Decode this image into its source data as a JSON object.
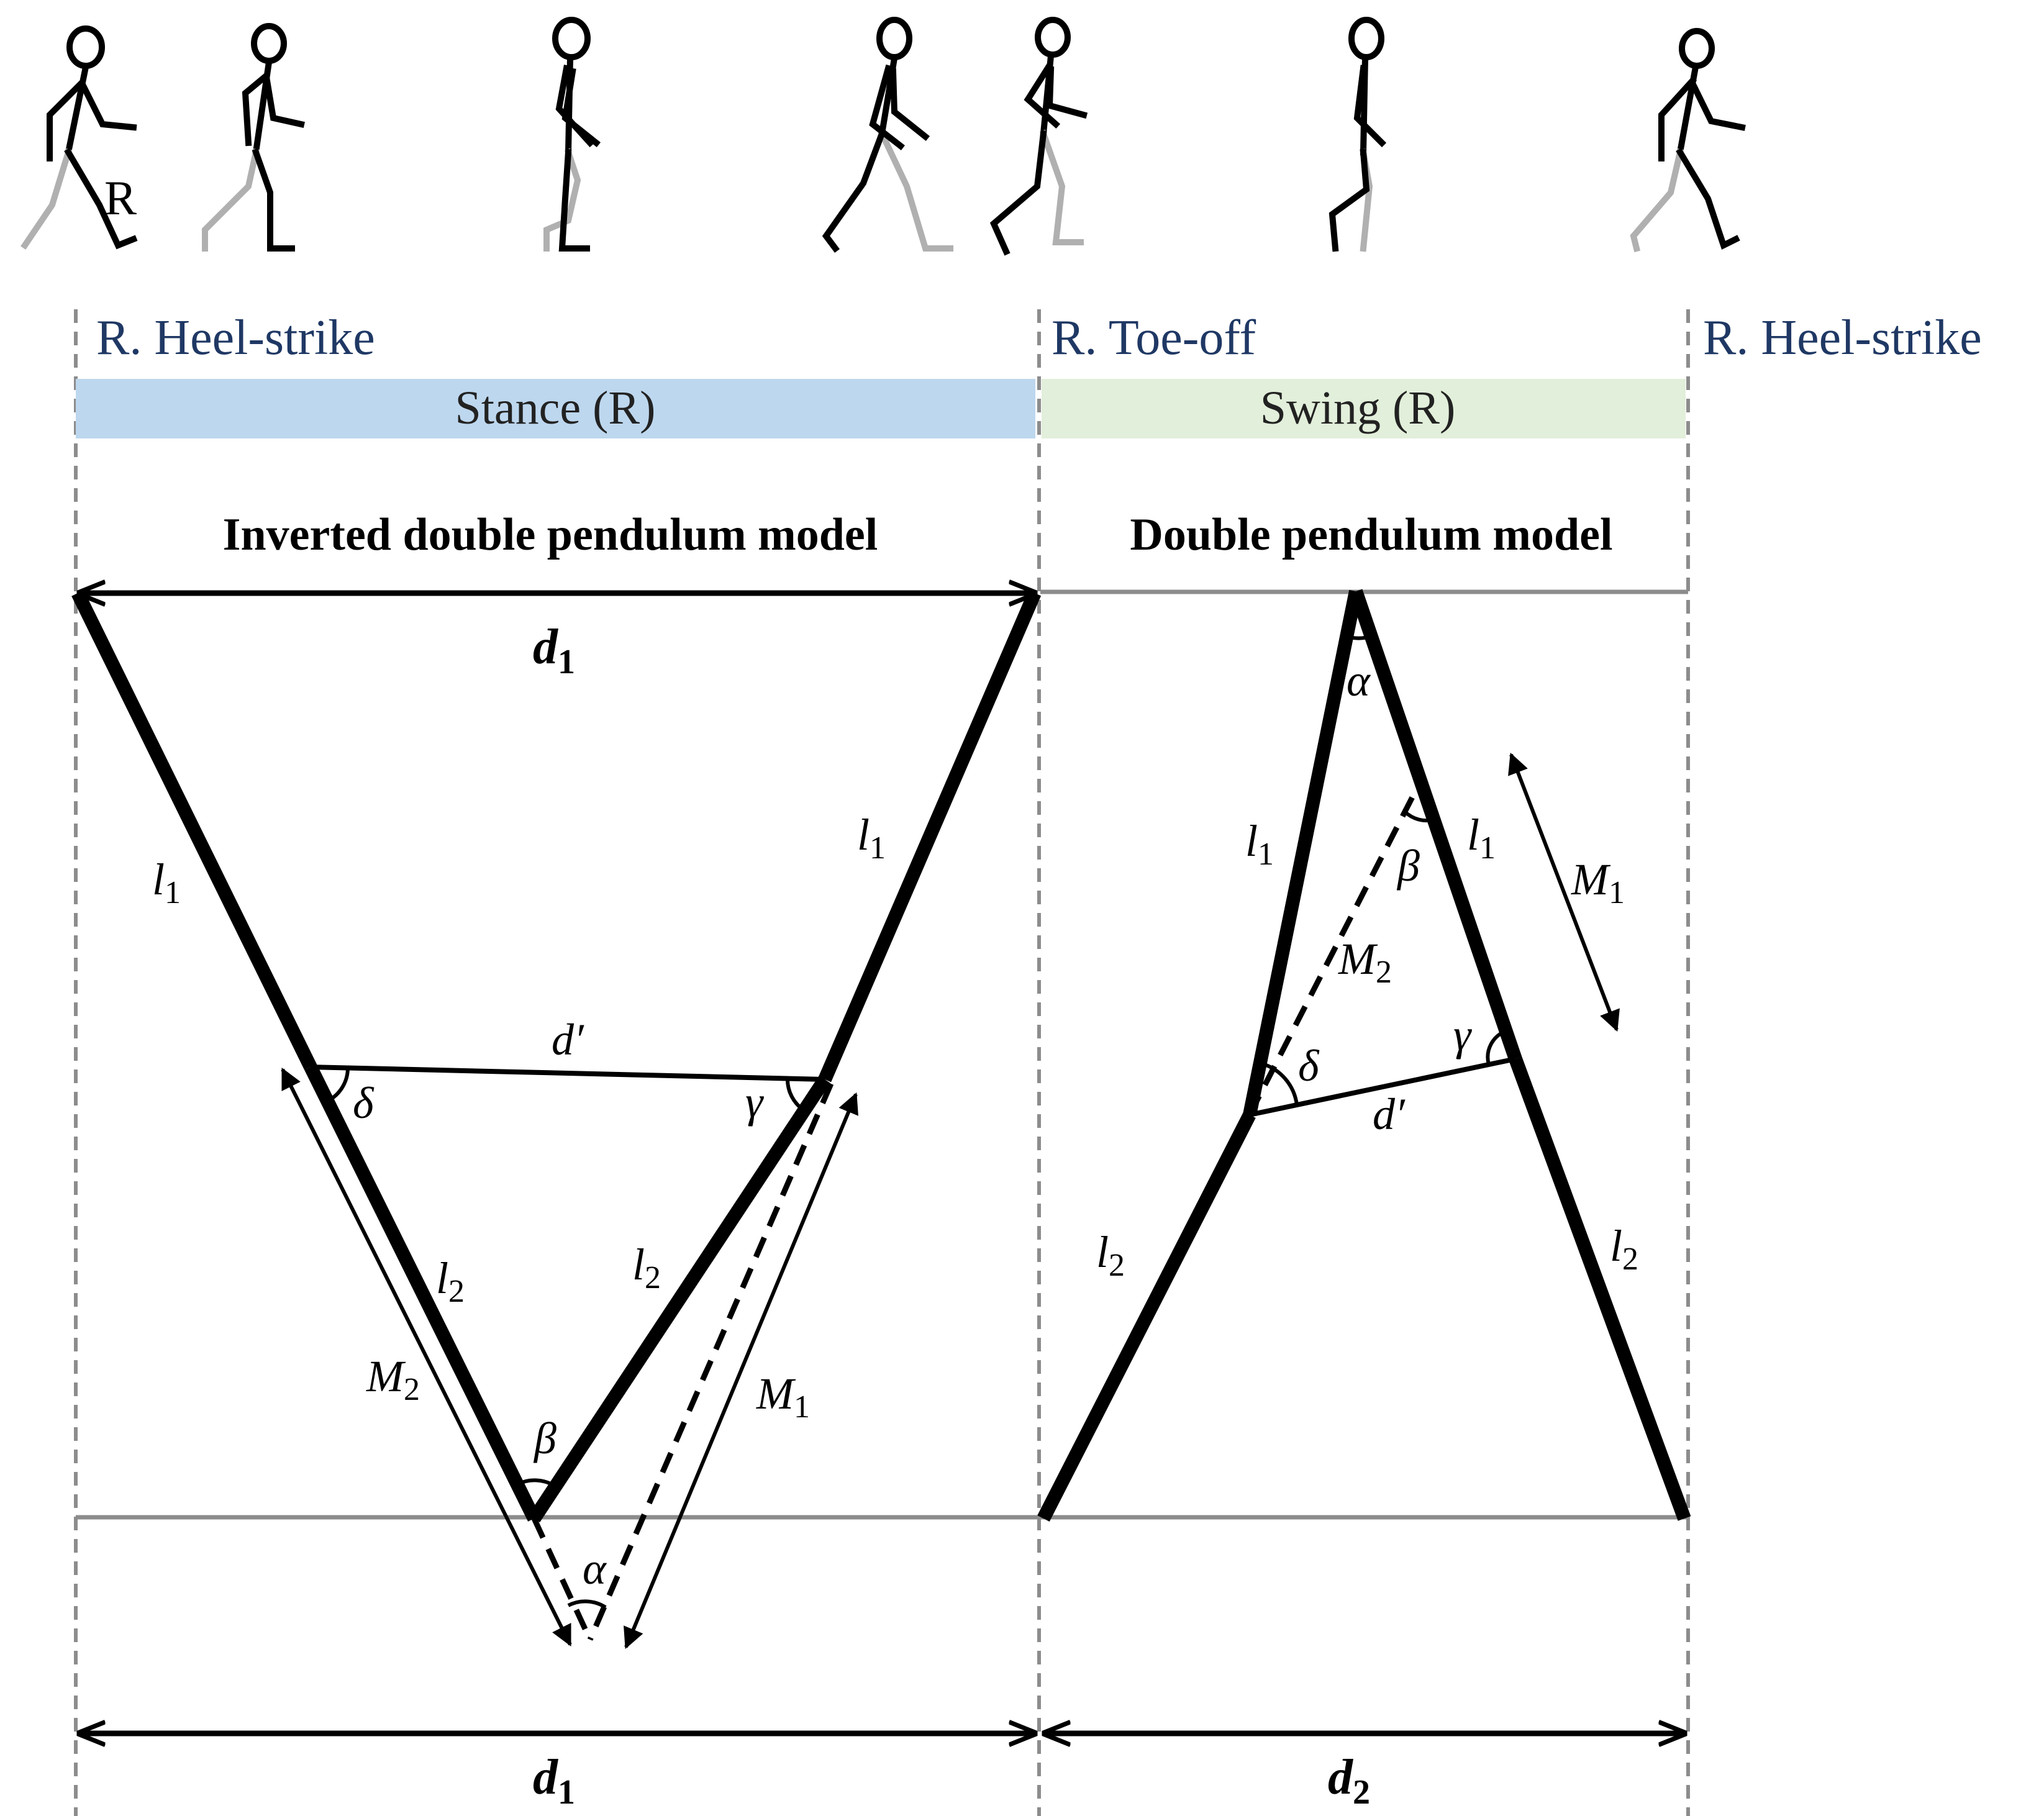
{
  "events": {
    "heel_strike_start": "R. Heel-strike",
    "toe_off": "R. Toe-off",
    "heel_strike_end": "R. Heel-strike"
  },
  "phases": {
    "stance": {
      "label": "Stance (R)",
      "color": "#bdd7ee"
    },
    "swing": {
      "label": "Swing (R)",
      "color": "#e2efda"
    }
  },
  "stick_figures": {
    "leg_label": "R",
    "reference_leg_color": "#b0b0b0",
    "active_leg_color": "#000000"
  },
  "stance_model": {
    "title": "Inverted double pendulum model",
    "top_distance": {
      "base": "d",
      "sub": "1"
    },
    "bottom_distance": {
      "base": "d",
      "sub": "1"
    },
    "left_upper_segment": {
      "base": "l",
      "sub": "1"
    },
    "right_upper_segment": {
      "base": "l",
      "sub": "1"
    },
    "left_lower_segment": {
      "base": "l",
      "sub": "2"
    },
    "right_lower_segment": {
      "base": "l",
      "sub": "2"
    },
    "knee_distance": "d′",
    "moment_left": {
      "base": "M",
      "sub": "2"
    },
    "moment_right": {
      "base": "M",
      "sub": "1"
    },
    "angle_left_knee": "δ",
    "angle_right_knee": "γ",
    "angle_ankle": "β",
    "angle_bottom": "α"
  },
  "swing_model": {
    "title": "Double pendulum model",
    "bottom_distance": {
      "base": "d",
      "sub": "2"
    },
    "left_upper_segment": {
      "base": "l",
      "sub": "1"
    },
    "right_upper_segment": {
      "base": "l",
      "sub": "1"
    },
    "left_lower_segment": {
      "base": "l",
      "sub": "2"
    },
    "right_lower_segment": {
      "base": "l",
      "sub": "2"
    },
    "knee_distance": "d′",
    "moment_outer": {
      "base": "M",
      "sub": "1"
    },
    "moment_inner": {
      "base": "M",
      "sub": "2"
    },
    "angle_hip": "α",
    "angle_upper": "β",
    "angle_left_knee": "δ",
    "angle_right_knee": "γ"
  }
}
